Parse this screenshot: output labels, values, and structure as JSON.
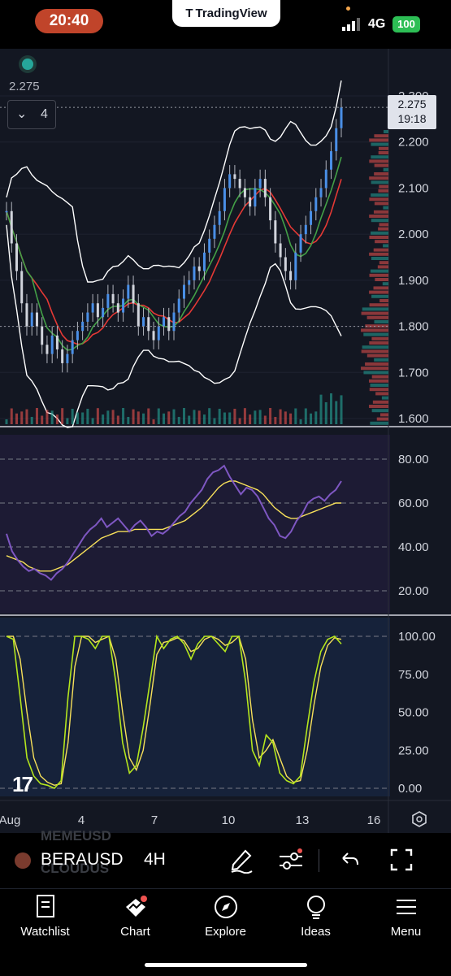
{
  "status_bar": {
    "time": "20:40",
    "app_pill": "TradingView",
    "network": "4G",
    "battery": "100"
  },
  "chart": {
    "price_readout": "2.275",
    "collapse_count": "4",
    "last_price": "2.275",
    "countdown": "19:18",
    "watermark": "17",
    "price_axis": [
      "2.300",
      "2.200",
      "2.100",
      "2.000",
      "1.900",
      "1.800",
      "1.700",
      "1.600"
    ],
    "rsi_axis": [
      "80.00",
      "60.00",
      "40.00",
      "20.00"
    ],
    "stoch_axis": [
      "100.00",
      "75.00",
      "50.00",
      "25.00",
      "0.00"
    ],
    "time_axis": [
      "Aug",
      "4",
      "7",
      "10",
      "13",
      "16"
    ],
    "colors": {
      "bg": "#131722",
      "up": "#26a69a",
      "down": "#ef5350",
      "candle_up": "#4a8fe7",
      "rsi": "#7e57c2",
      "rsi_ma": "#f7e05a",
      "stoch_k": "#b5e61d",
      "stoch_d": "#f7e05a",
      "band": "#ffffff",
      "ema_fast": "#e53935",
      "ema_slow": "#43a047"
    }
  },
  "chart_data": [
    {
      "type": "candlestick",
      "title": "BERAUSD 4H",
      "ylim": [
        1.6,
        2.3
      ],
      "x_ticks": [
        "Aug",
        "4",
        "7",
        "10",
        "13",
        "16"
      ],
      "close": [
        2.05,
        1.98,
        1.92,
        1.85,
        1.8,
        1.83,
        1.8,
        1.76,
        1.74,
        1.78,
        1.75,
        1.72,
        1.74,
        1.77,
        1.79,
        1.81,
        1.83,
        1.85,
        1.82,
        1.84,
        1.87,
        1.85,
        1.83,
        1.86,
        1.89,
        1.85,
        1.8,
        1.82,
        1.79,
        1.77,
        1.8,
        1.82,
        1.79,
        1.83,
        1.86,
        1.89,
        1.9,
        1.93,
        1.92,
        1.96,
        1.99,
        2.02,
        2.05,
        2.1,
        2.13,
        2.12,
        2.1,
        2.08,
        2.06,
        2.1,
        2.12,
        2.08,
        2.03,
        1.98,
        1.95,
        1.92,
        1.9,
        1.96,
        2.0,
        2.02,
        2.05,
        2.08,
        2.1,
        2.14,
        2.18,
        2.23,
        2.275
      ]
    },
    {
      "type": "line",
      "name": "RSI",
      "ylim": [
        20,
        80
      ],
      "series": [
        {
          "name": "RSI",
          "values": [
            46,
            38,
            34,
            31,
            29,
            30,
            28,
            27,
            25,
            28,
            30,
            33,
            37,
            41,
            45,
            48,
            50,
            53,
            49,
            51,
            53,
            50,
            47,
            50,
            52,
            49,
            45,
            47,
            46,
            48,
            51,
            54,
            56,
            60,
            63,
            66,
            71,
            74,
            75,
            77,
            72,
            68,
            64,
            67,
            66,
            63,
            58,
            53,
            50,
            45,
            44,
            47,
            52,
            55,
            60,
            62,
            63,
            61,
            64,
            66,
            70
          ]
        },
        {
          "name": "RSI-based MA",
          "values": [
            36,
            35,
            34,
            33,
            31,
            30,
            29,
            29,
            29,
            30,
            31,
            32,
            34,
            36,
            38,
            40,
            42,
            44,
            45,
            46,
            47,
            47,
            47,
            48,
            48,
            48,
            48,
            48,
            48,
            49,
            50,
            51,
            52,
            54,
            56,
            58,
            61,
            64,
            67,
            69,
            70,
            70,
            69,
            68,
            67,
            66,
            64,
            61,
            58,
            56,
            54,
            53,
            53,
            54,
            55,
            56,
            57,
            58,
            59,
            60,
            60
          ]
        }
      ]
    },
    {
      "type": "line",
      "name": "Stoch",
      "ylim": [
        0,
        100
      ],
      "series": [
        {
          "name": "%K",
          "values": [
            100,
            98,
            60,
            20,
            8,
            3,
            2,
            0,
            5,
            60,
            100,
            100,
            98,
            92,
            100,
            100,
            70,
            30,
            10,
            15,
            40,
            70,
            100,
            92,
            98,
            100,
            95,
            85,
            95,
            100,
            100,
            95,
            90,
            100,
            100,
            70,
            25,
            15,
            35,
            30,
            10,
            5,
            3,
            8,
            40,
            70,
            90,
            98,
            100,
            95
          ]
        },
        {
          "name": "%D",
          "values": [
            100,
            100,
            85,
            50,
            20,
            8,
            4,
            2,
            3,
            30,
            80,
            100,
            100,
            96,
            98,
            100,
            85,
            50,
            20,
            12,
            25,
            55,
            88,
            96,
            97,
            99,
            97,
            90,
            92,
            98,
            100,
            98,
            94,
            96,
            100,
            85,
            45,
            20,
            25,
            32,
            20,
            8,
            4,
            5,
            25,
            55,
            80,
            94,
            99,
            98
          ]
        }
      ]
    }
  ],
  "ticker": {
    "bg_symbols": [
      "MEMEUSD",
      "CLOUDUS"
    ],
    "symbol": "BERAUSD",
    "interval": "4H"
  },
  "toolbar": {
    "draw_icon": "pen-icon",
    "indicators_icon": "sliders-icon",
    "undo_icon": "undo-icon",
    "fullscreen_icon": "fullscreen-icon"
  },
  "tabs": [
    {
      "label": "Watchlist",
      "icon": "watchlist-icon"
    },
    {
      "label": "Chart",
      "icon": "chart-icon"
    },
    {
      "label": "Explore",
      "icon": "compass-icon"
    },
    {
      "label": "Ideas",
      "icon": "lightbulb-icon"
    },
    {
      "label": "Menu",
      "icon": "hamburger-icon"
    }
  ]
}
